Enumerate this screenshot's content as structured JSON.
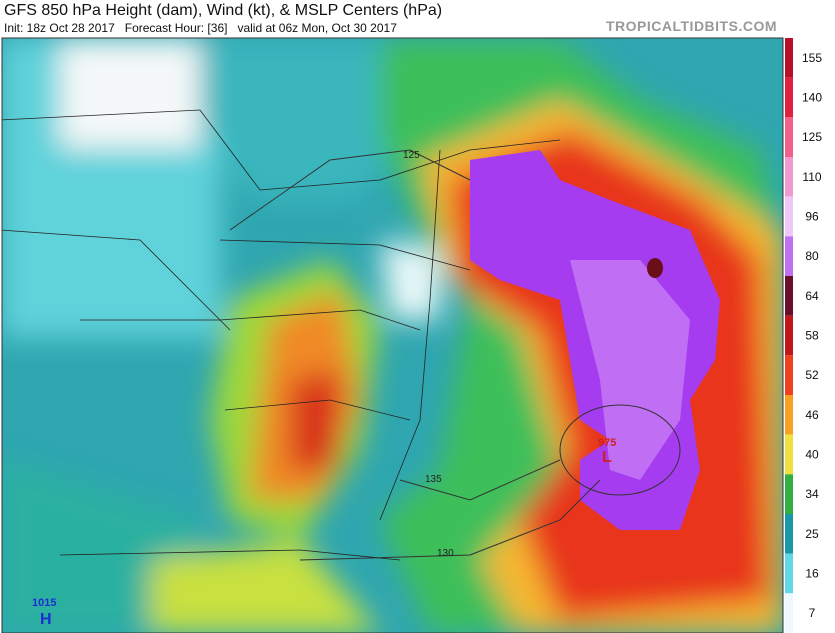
{
  "header": {
    "title": "GFS 850 hPa Height (dam), Wind (kt), & MSLP Centers (hPa)",
    "init": "Init: 18z Oct 28 2017   Forecast Hour: [36]   valid at 06z Mon, Oct 30 2017",
    "source": "TROPICALTIDBITS.COM"
  },
  "colorbar": {
    "ticks": [
      "155",
      "140",
      "125",
      "110",
      "96",
      "80",
      "64",
      "58",
      "52",
      "46",
      "40",
      "34",
      "25",
      "16",
      "7"
    ]
  },
  "map": {
    "contours": [
      "125",
      "135",
      "130"
    ],
    "high": {
      "value": "1015",
      "letter": "H"
    },
    "low": {
      "value": "975",
      "letter": "L"
    }
  }
}
